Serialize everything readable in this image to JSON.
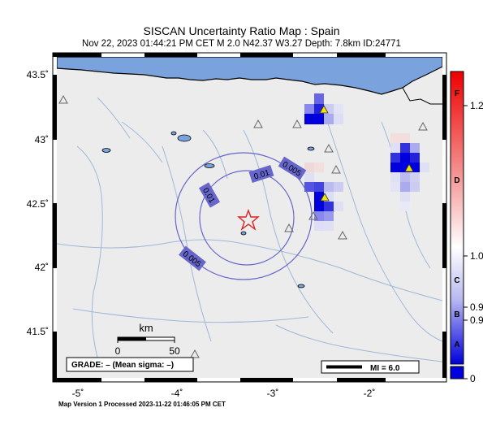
{
  "header": {
    "title": "SISCAN Uncertainty Ratio Map : Spain",
    "subtitle": "Nov 22, 2023 01:44:21 PM CET   M 2.0   N42.37 W3.27   Depth: 7.8km   ID:24771"
  },
  "axes": {
    "lon_ticks": [
      "-5˚",
      "-4˚",
      "-3˚",
      "-2˚"
    ],
    "lat_ticks": [
      "43.5˚",
      "43˚",
      "42.5˚",
      "42˚",
      "41.5˚"
    ]
  },
  "contours": [
    "0.01",
    "0.01",
    "0.005",
    "0.005"
  ],
  "scalebar": {
    "title": "km",
    "start": "0",
    "end": "50"
  },
  "grade": "GRADE: – (Mean sigma: –)",
  "mi_legend": "MI = 6.0",
  "colorbar": {
    "grades": [
      "F",
      "D",
      "C",
      "B",
      "A"
    ],
    "values": [
      "1.2",
      "1.0",
      "0.9",
      "0.9",
      "0"
    ],
    "colors": {
      "high": "#ee0000",
      "mid": "#ffffff",
      "low": "#0000ee"
    }
  },
  "footer": "Map Version 1 Processed 2023-11-22 01:46:05 PM CET",
  "colors": {
    "sea": "#7aa2dc",
    "land": "#ececec",
    "river": "#9fb8d8",
    "contour": "#6666cc",
    "epicenter": "#dd2222"
  }
}
